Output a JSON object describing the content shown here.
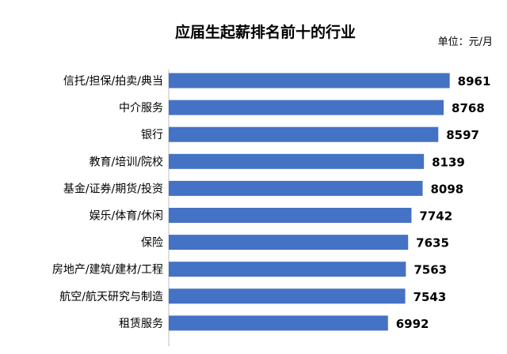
{
  "chart_data": {
    "type": "bar",
    "orientation": "horizontal",
    "title": "应届生起薪排名前十的行业",
    "unit": "单位：元/月",
    "categories": [
      "信托/担保/拍卖/典当",
      "中介服务",
      "银行",
      "教育/培训/院校",
      "基金/证券/期货/投资",
      "娱乐/体育/休闲",
      "保险",
      "房地产/建筑/建材/工程",
      "航空/航天研究与制造",
      "租赁服务"
    ],
    "values": [
      8961,
      8768,
      8597,
      8139,
      8098,
      7742,
      7635,
      7563,
      7543,
      6992
    ],
    "xlim": [
      0,
      9500
    ],
    "grid": false,
    "legend": "none",
    "bar_color": "#4472C4"
  }
}
